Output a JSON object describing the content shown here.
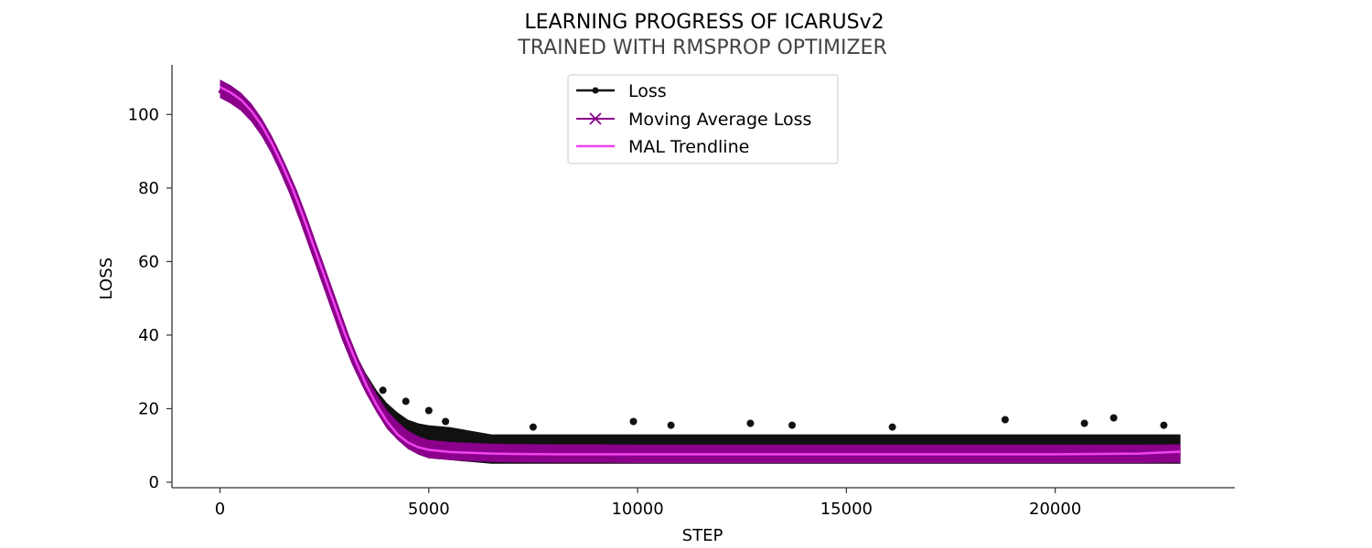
{
  "chart_data": {
    "type": "line",
    "title": "LEARNING PROGRESS OF ICARUSv2",
    "subtitle": "TRAINED WITH RMSPROP OPTIMIZER",
    "xlabel": "STEP",
    "ylabel": "LOSS",
    "xlim": [
      -1150,
      24300
    ],
    "ylim": [
      -1.5,
      113.5
    ],
    "x_ticks": [
      0,
      5000,
      10000,
      15000,
      20000
    ],
    "x_tick_labels": [
      "0",
      "5000",
      "10000",
      "15000",
      "20000"
    ],
    "y_ticks": [
      0,
      20,
      40,
      60,
      80,
      100
    ],
    "y_tick_labels": [
      "0",
      "20",
      "40",
      "60",
      "80",
      "100"
    ],
    "grid": false,
    "legend_position": "top-center",
    "series": [
      {
        "name": "Loss",
        "color": "#111111",
        "marker": "dot",
        "x": [
          0,
          250,
          500,
          750,
          1000,
          1250,
          1500,
          1750,
          2000,
          2250,
          2500,
          2750,
          3000,
          3250,
          3500,
          3750,
          4000,
          4250,
          4500,
          4750,
          5000,
          5500,
          6000,
          6500,
          7000,
          8000,
          9000,
          10000,
          11000,
          12000,
          13000,
          14000,
          15000,
          16000,
          17000,
          18000,
          19000,
          20000,
          21000,
          22000,
          23000
        ],
        "values": [
          107,
          106,
          104,
          101,
          97,
          92,
          86,
          80,
          72,
          64,
          56,
          48,
          40,
          33,
          27,
          22,
          18,
          15,
          13,
          11,
          10,
          9.5,
          9,
          9,
          8.8,
          8.7,
          8.6,
          8.6,
          8.5,
          8.5,
          8.5,
          8.5,
          8.5,
          8.5,
          8.5,
          8.5,
          8.5,
          8.5,
          8.5,
          8.5,
          8.6
        ],
        "noise_band_low": [
          106,
          105,
          103,
          100,
          95.5,
          90.5,
          84.5,
          78,
          70,
          62,
          54,
          46,
          38,
          31,
          25,
          19.5,
          15,
          12,
          9.5,
          7.5,
          6.5,
          6,
          5.5,
          5,
          5,
          5,
          5,
          5,
          5,
          5,
          5,
          5,
          5,
          5,
          5,
          5,
          5,
          5,
          5,
          5,
          5
        ],
        "noise_band_high": [
          108,
          107.5,
          105.5,
          102.5,
          98.5,
          93.5,
          87.5,
          81.5,
          74,
          66,
          58,
          50,
          42,
          35,
          29.5,
          25,
          21.5,
          19,
          17,
          16,
          15.5,
          15,
          14,
          13,
          13,
          13,
          13,
          13,
          13,
          13,
          13,
          13,
          13,
          13,
          13,
          13,
          13,
          13,
          13,
          13,
          13
        ],
        "spikes": [
          {
            "x": 3900,
            "y": 25
          },
          {
            "x": 4450,
            "y": 22
          },
          {
            "x": 5000,
            "y": 19.5
          },
          {
            "x": 5400,
            "y": 16.5
          },
          {
            "x": 7500,
            "y": 15
          },
          {
            "x": 9900,
            "y": 16.5
          },
          {
            "x": 10800,
            "y": 15.5
          },
          {
            "x": 12700,
            "y": 16
          },
          {
            "x": 13700,
            "y": 15.5
          },
          {
            "x": 16100,
            "y": 15
          },
          {
            "x": 18800,
            "y": 17
          },
          {
            "x": 20700,
            "y": 16
          },
          {
            "x": 21400,
            "y": 17.5
          },
          {
            "x": 22600,
            "y": 15.5
          }
        ]
      },
      {
        "name": "Moving Average Loss",
        "color": "#8b008b",
        "marker": "x",
        "x": [
          0,
          250,
          500,
          750,
          1000,
          1250,
          1500,
          1750,
          2000,
          2250,
          2500,
          2750,
          3000,
          3250,
          3500,
          3750,
          4000,
          4250,
          4500,
          4750,
          5000,
          5500,
          6000,
          6500,
          7000,
          8000,
          9000,
          10000,
          11000,
          12000,
          13000,
          14000,
          15000,
          16000,
          17000,
          18000,
          19000,
          20000,
          21000,
          22000,
          23000
        ],
        "values": [
          107,
          105.5,
          103.5,
          100.5,
          96.5,
          91.5,
          85.5,
          79,
          71.5,
          63.5,
          55.5,
          47.5,
          39.5,
          32.5,
          26.5,
          21.5,
          17,
          14,
          11.5,
          10,
          9,
          8.5,
          8.2,
          8,
          7.9,
          7.8,
          7.8,
          7.7,
          7.7,
          7.7,
          7.7,
          7.7,
          7.7,
          7.7,
          7.7,
          7.7,
          7.7,
          7.7,
          7.7,
          7.7,
          7.8
        ],
        "band_half_width": 2.5
      },
      {
        "name": "MAL Trendline",
        "color": "#ee44ee",
        "marker": "none",
        "x": [
          0,
          250,
          500,
          750,
          1000,
          1250,
          1500,
          1750,
          2000,
          2250,
          2500,
          2750,
          3000,
          3250,
          3500,
          3750,
          4000,
          4250,
          4500,
          4750,
          5000,
          5500,
          6000,
          6500,
          7000,
          8000,
          9000,
          10000,
          11000,
          12000,
          13000,
          14000,
          15000,
          16000,
          17000,
          18000,
          19000,
          20000,
          21000,
          22000,
          23000
        ],
        "values": [
          107.5,
          106,
          104,
          101,
          97,
          92,
          86,
          79.5,
          72,
          64,
          56,
          48,
          40,
          33,
          26.5,
          21,
          16.5,
          13,
          10.8,
          9.5,
          8.8,
          8.2,
          8,
          7.8,
          7.7,
          7.6,
          7.6,
          7.6,
          7.6,
          7.6,
          7.6,
          7.6,
          7.6,
          7.6,
          7.6,
          7.6,
          7.6,
          7.6,
          7.7,
          7.8,
          8.3
        ]
      }
    ]
  }
}
